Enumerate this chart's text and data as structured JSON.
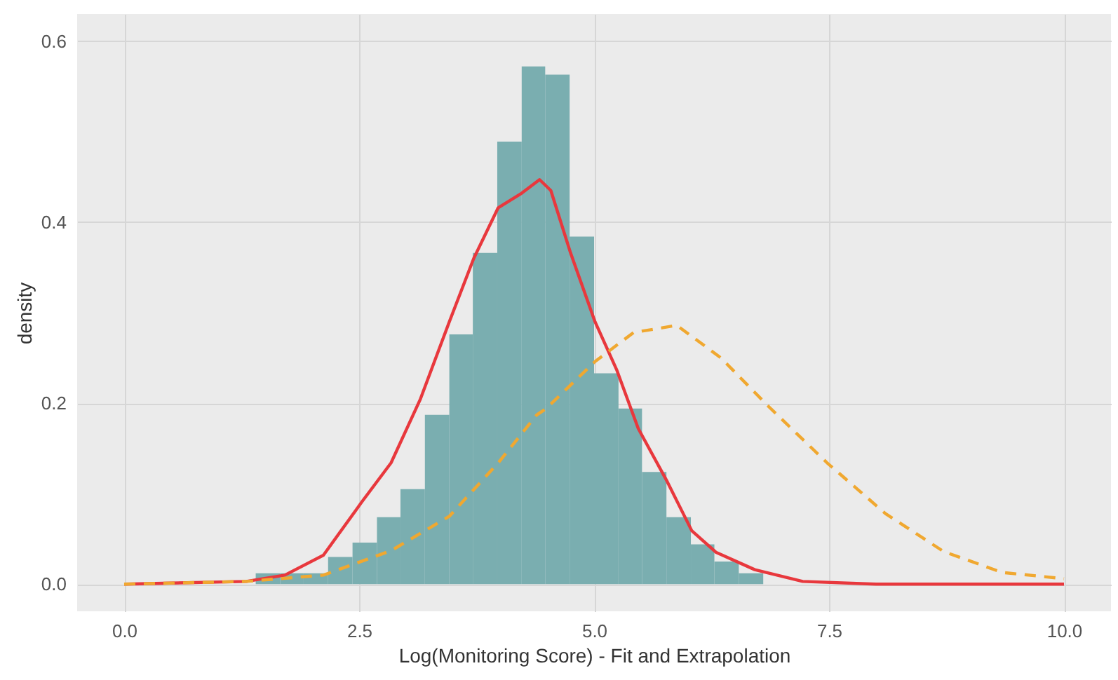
{
  "chart_data": {
    "type": "histogram",
    "xlabel": "Log(Monitoring Score) - Fit and Extrapolation",
    "ylabel": "density",
    "xlim": [
      -0.5,
      10.5
    ],
    "ylim": [
      -0.03,
      0.63
    ],
    "xticks": [
      {
        "value": 0,
        "label": "0.0"
      },
      2.5,
      {
        "value": 5,
        "label": "5.0"
      },
      7.5,
      {
        "value": 10,
        "label": "10.0"
      }
    ],
    "yticks": [
      {
        "value": 0,
        "label": "0.0"
      },
      0.2,
      0.4,
      0.6
    ],
    "grid": true,
    "series": [
      {
        "color": "#7aaeb0",
        "bins": [
          1.4,
          1.66,
          1.91,
          2.17,
          2.43,
          2.69,
          2.94,
          3.2,
          3.46,
          3.71,
          3.97,
          4.23,
          4.48,
          4.74,
          5.0,
          5.26,
          5.51,
          5.77,
          6.03,
          6.28,
          6.54,
          6.8
        ],
        "values": [
          0.012,
          0.012,
          0.012,
          0.03,
          0.046,
          0.074,
          0.105,
          0.187,
          0.276,
          0.366,
          0.489,
          0.572,
          0.563,
          0.384,
          0.233,
          0.194,
          0.124,
          0.074,
          0.044,
          0.025,
          0.012
        ]
      },
      {
        "type": "line",
        "color": "#e8383d",
        "line_style": "solid",
        "x": [
          0,
          1.3,
          1.71,
          2.12,
          2.53,
          2.84,
          3.15,
          3.46,
          3.72,
          3.98,
          4.23,
          4.42,
          4.54,
          4.75,
          5.01,
          5.24,
          5.47,
          5.78,
          6.04,
          6.3,
          6.71,
          7.22,
          8.0,
          10.0
        ],
        "values": [
          0,
          0.003,
          0.01,
          0.032,
          0.091,
          0.134,
          0.204,
          0.29,
          0.36,
          0.416,
          0.432,
          0.447,
          0.435,
          0.366,
          0.29,
          0.237,
          0.172,
          0.113,
          0.059,
          0.035,
          0.016,
          0.003,
          0,
          0
        ]
      },
      {
        "type": "line",
        "color": "#f0a830",
        "line_style": "dashed",
        "x": [
          0,
          1.3,
          2.12,
          2.84,
          3.46,
          3.98,
          4.39,
          4.49,
          5.01,
          5.42,
          5.88,
          6.35,
          6.86,
          7.48,
          8.1,
          8.72,
          9.34,
          10.0
        ],
        "values": [
          0,
          0.003,
          0.01,
          0.037,
          0.075,
          0.134,
          0.187,
          0.194,
          0.246,
          0.278,
          0.286,
          0.25,
          0.196,
          0.134,
          0.078,
          0.036,
          0.013,
          0.006
        ]
      }
    ]
  }
}
